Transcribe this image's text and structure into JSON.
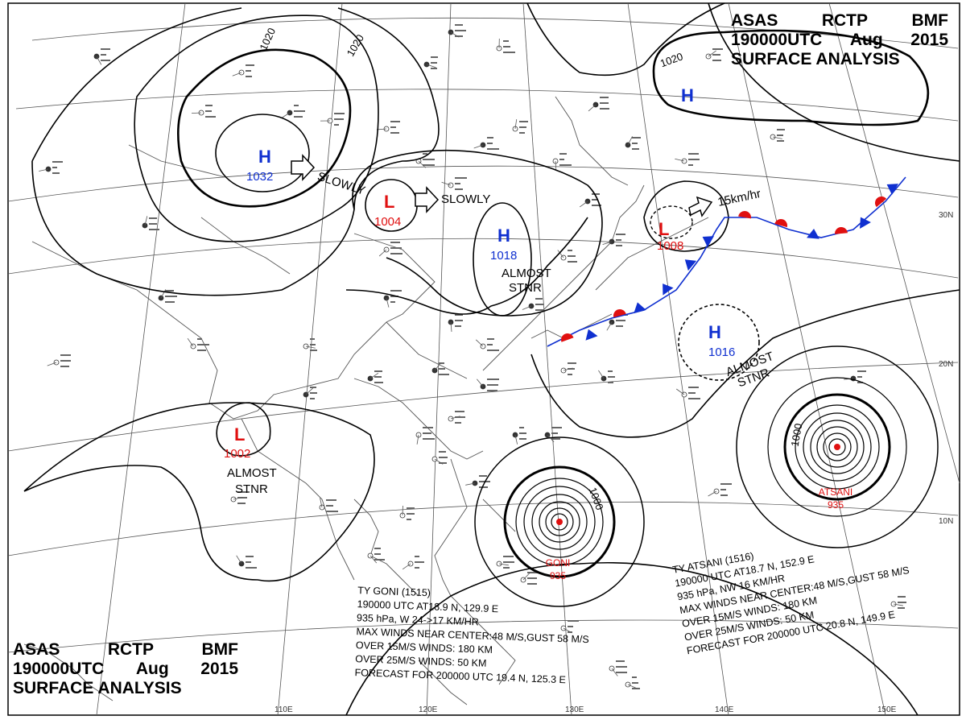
{
  "header": {
    "line1": [
      "ASAS",
      "RCTP",
      "BMF"
    ],
    "line2": [
      "190000UTC",
      "Aug",
      "2015"
    ],
    "line3": "SURFACE ANALYSIS"
  },
  "colors": {
    "high": "#1030d0",
    "low": "#e01010",
    "line": "#000000",
    "grid": "#555555"
  },
  "lon_labels": [
    "110E",
    "120E",
    "130E",
    "140E",
    "150E"
  ],
  "lat_labels": [
    "30N",
    "20N",
    "10N"
  ],
  "isobar_labels": [
    "1020",
    "1020",
    "1020",
    "1000",
    "1000"
  ],
  "pressure_centers": [
    {
      "kind": "H",
      "value": "1032"
    },
    {
      "kind": "L",
      "value": "1004"
    },
    {
      "kind": "H",
      "value": "1018"
    },
    {
      "kind": "L",
      "value": "1008"
    },
    {
      "kind": "H",
      "value": "1016"
    },
    {
      "kind": "L",
      "value": "1002"
    },
    {
      "kind": "H",
      "value": ""
    }
  ],
  "motion_labels": [
    "SLOWLY",
    "SLOWLY",
    "15km/hr"
  ],
  "stationary_labels": [
    [
      "ALMOST",
      "STNR"
    ],
    [
      "ALMOST",
      "STNR"
    ],
    [
      "ALMOST",
      "STNR"
    ]
  ],
  "typhoons": [
    {
      "name": "GONI",
      "pressure": "935"
    },
    {
      "name": "ATSANI",
      "pressure": "935"
    }
  ],
  "goni_info": [
    "TY  GONI  (1515)",
    "190000  UTC   AT18.9 N, 129.9 E",
    "935 hPa, W  24->17 KM/HR",
    "MAX WINDS NEAR CENTER:48 M/S,GUST 58 M/S",
    "OVER 15M/S WINDS: 180 KM",
    "OVER 25M/S WINDS: 50 KM",
    "FORECAST FOR 200000 UTC 19.4 N, 125.3 E"
  ],
  "atsani_info": [
    "TY  ATSANI  (1516)",
    "190000 UTC  AT18.7 N, 152.9 E",
    "935 hPa, NW  16 KM/HR",
    "MAX WINDS NEAR CENTER:48 M/S,GUST 58 M/S",
    "OVER 15M/S WINDS: 180 KM",
    "OVER 25M/S WINDS: 50 KM",
    "FORECAST FOR 200000 UTC 20.8 N, 149.9 E"
  ]
}
